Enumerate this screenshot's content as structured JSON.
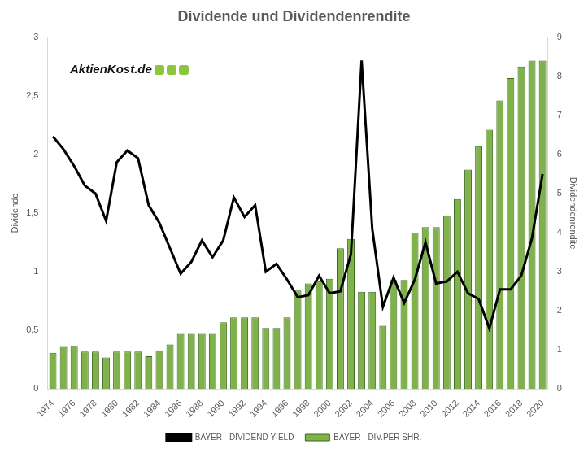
{
  "chart_data": {
    "type": "bar",
    "title": "Dividende und Dividendenrendite",
    "y_label": "Dividende",
    "y2_label": "Dividendenrendite",
    "annotations": [
      "AktienKost.de"
    ],
    "categories": [
      "1974",
      null,
      "1976",
      null,
      "1978",
      null,
      "1980",
      null,
      "1982",
      null,
      "1984",
      null,
      "1986",
      null,
      "1988",
      null,
      "1990",
      null,
      "1992",
      null,
      "1994",
      null,
      "1996",
      null,
      "1998",
      null,
      "2000",
      null,
      "2002",
      null,
      "2004",
      null,
      "2006",
      null,
      "2008",
      null,
      "2010",
      null,
      "2012",
      null,
      "2014",
      null,
      "2016",
      null,
      "2018",
      null,
      "2020"
    ],
    "series": [
      {
        "name": "BAYER - DIV.PER SHR.",
        "type": "bar",
        "color": "#7fb24a",
        "values": [
          0.31,
          0.36,
          0.37,
          0.32,
          0.32,
          0.27,
          0.32,
          0.32,
          0.32,
          0.28,
          0.33,
          0.38,
          0.47,
          0.47,
          0.47,
          0.47,
          0.57,
          0.61,
          0.61,
          0.61,
          0.52,
          0.52,
          0.61,
          0.84,
          0.9,
          0.92,
          0.94,
          1.2,
          1.28,
          0.83,
          0.83,
          0.54,
          0.93,
          0.93,
          1.33,
          1.38,
          1.38,
          1.48,
          1.62,
          1.87,
          2.07,
          2.21,
          2.46,
          2.65,
          2.75,
          2.8,
          2.8
        ]
      },
      {
        "name": "BAYER - DIVIDEND YIELD",
        "type": "line",
        "axis": "y2",
        "color": "#000000",
        "values": [
          6.46,
          6.13,
          5.7,
          5.2,
          5.0,
          4.3,
          5.8,
          6.1,
          5.9,
          4.7,
          4.25,
          3.6,
          2.95,
          3.25,
          3.8,
          3.37,
          3.8,
          4.9,
          4.4,
          4.7,
          3.0,
          3.2,
          2.8,
          2.35,
          2.4,
          2.9,
          2.45,
          2.5,
          3.45,
          8.4,
          4.1,
          2.1,
          2.85,
          2.2,
          2.8,
          3.75,
          2.7,
          2.75,
          3.0,
          2.45,
          2.3,
          1.55,
          2.55,
          2.55,
          2.9,
          3.85,
          5.5
        ]
      }
    ],
    "ylim": [
      0,
      3
    ],
    "yticks": [
      0,
      {
        "value": 0.5,
        "label": "0,5"
      },
      1,
      {
        "value": 1.5,
        "label": "1,5"
      },
      2,
      {
        "value": 2.5,
        "label": "2,5"
      },
      3
    ],
    "y2lim": [
      0,
      9
    ],
    "y2ticks": [
      0,
      1,
      2,
      3,
      4,
      5,
      6,
      7,
      8,
      9
    ],
    "grid": false,
    "legend": "bottom"
  }
}
